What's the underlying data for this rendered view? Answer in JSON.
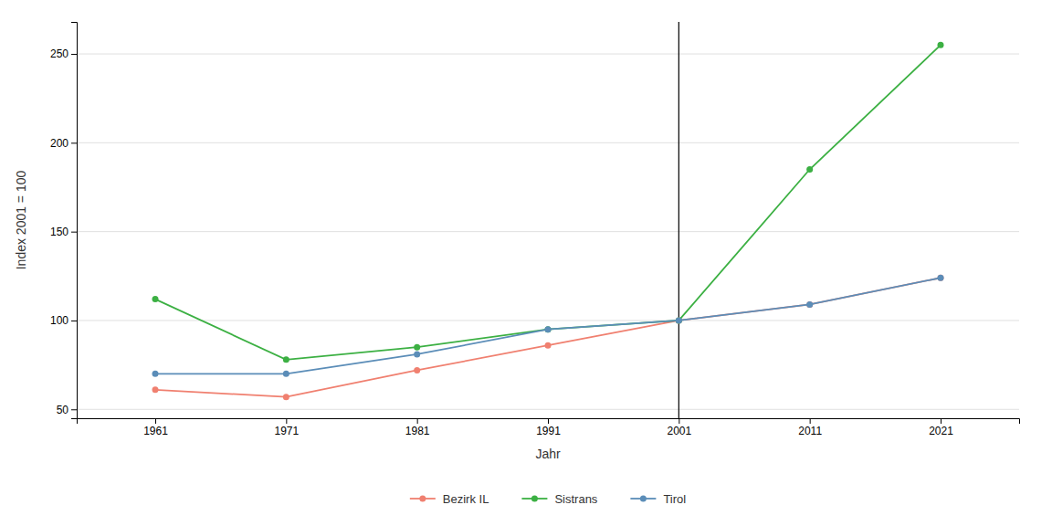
{
  "chart_data": {
    "type": "line",
    "xlabel": "Jahr",
    "ylabel": "Index 2001 = 100",
    "x": [
      1961,
      1971,
      1981,
      1991,
      2001,
      2011,
      2021
    ],
    "series": [
      {
        "name": "Bezirk IL",
        "color": "#F08070",
        "values": [
          61,
          57,
          72,
          86,
          100,
          109,
          124
        ]
      },
      {
        "name": "Sistrans",
        "color": "#3CB043",
        "values": [
          112,
          78,
          85,
          95,
          100,
          185,
          255
        ]
      },
      {
        "name": "Tirol",
        "color": "#5B8DB8",
        "values": [
          70,
          70,
          81,
          95,
          100,
          109,
          124
        ]
      }
    ],
    "xlim": [
      1955,
      2027
    ],
    "xticks": [
      1961,
      1971,
      1981,
      1991,
      2001,
      2011,
      2021
    ],
    "ylim": [
      45,
      268
    ],
    "yticks": [
      50,
      100,
      150,
      200,
      250
    ],
    "vlines": [
      2001
    ],
    "grid": true,
    "legend": "bottom",
    "marker": "circle"
  }
}
